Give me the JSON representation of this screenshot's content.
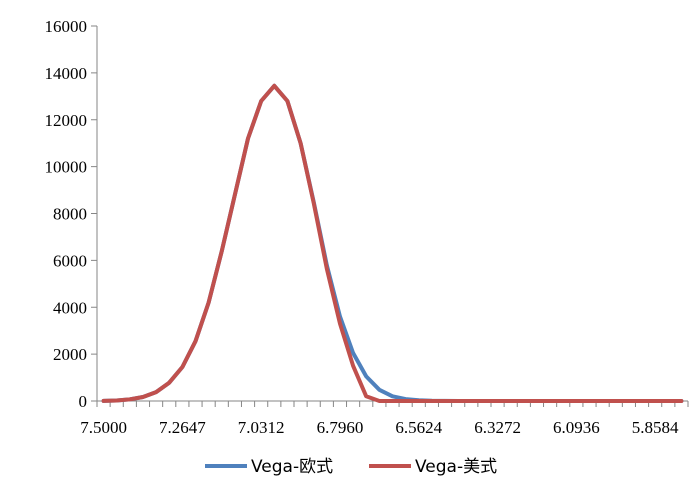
{
  "chart_data": {
    "type": "line",
    "title": "",
    "xlabel": "",
    "ylabel": "",
    "x_reversed": true,
    "x_ticks": [
      "7.5000",
      "7.2647",
      "7.0312",
      "6.7960",
      "6.5624",
      "6.3272",
      "6.0936",
      "5.8584"
    ],
    "ylim": [
      0,
      16000
    ],
    "y_ticks": [
      "0",
      "2000",
      "4000",
      "6000",
      "8000",
      "10000",
      "12000",
      "14000",
      "16000"
    ],
    "grid": false,
    "legend_position": "bottom",
    "x": [
      7.5,
      7.4608,
      7.4216,
      7.3824,
      7.3431,
      7.3039,
      7.2647,
      7.2258,
      7.1869,
      7.1479,
      7.109,
      7.0701,
      7.0312,
      6.992,
      6.9528,
      6.9136,
      6.8744,
      6.8352,
      6.796,
      6.7571,
      6.7182,
      6.6792,
      6.6403,
      6.6013,
      6.5624,
      6.5232,
      6.484,
      6.4448,
      6.4056,
      6.3664,
      6.3272,
      6.2883,
      6.2494,
      6.2104,
      6.1715,
      6.1325,
      6.0936,
      6.0544,
      6.0152,
      5.976,
      5.9368,
      5.8976,
      5.8584,
      5.8192,
      5.78
    ],
    "series": [
      {
        "name": "Vega-欧式",
        "color": "#4f81bd",
        "values": [
          5,
          20,
          70,
          170,
          380,
          780,
          1450,
          2550,
          4200,
          6400,
          8800,
          11200,
          12800,
          13450,
          12800,
          11000,
          8500,
          5800,
          3600,
          2050,
          1050,
          480,
          200,
          80,
          30,
          10,
          5,
          2,
          0,
          0,
          0,
          0,
          0,
          0,
          0,
          0,
          0,
          0,
          0,
          0,
          0,
          0,
          0,
          0,
          0
        ]
      },
      {
        "name": "Vega-美式",
        "color": "#c0504d",
        "values": [
          5,
          20,
          70,
          170,
          380,
          780,
          1450,
          2550,
          4200,
          6400,
          8800,
          11200,
          12800,
          13450,
          12800,
          11000,
          8450,
          5650,
          3300,
          1500,
          200,
          0,
          0,
          0,
          0,
          0,
          0,
          0,
          0,
          0,
          0,
          0,
          0,
          0,
          0,
          0,
          0,
          0,
          0,
          0,
          0,
          0,
          0,
          0,
          0
        ]
      }
    ]
  }
}
